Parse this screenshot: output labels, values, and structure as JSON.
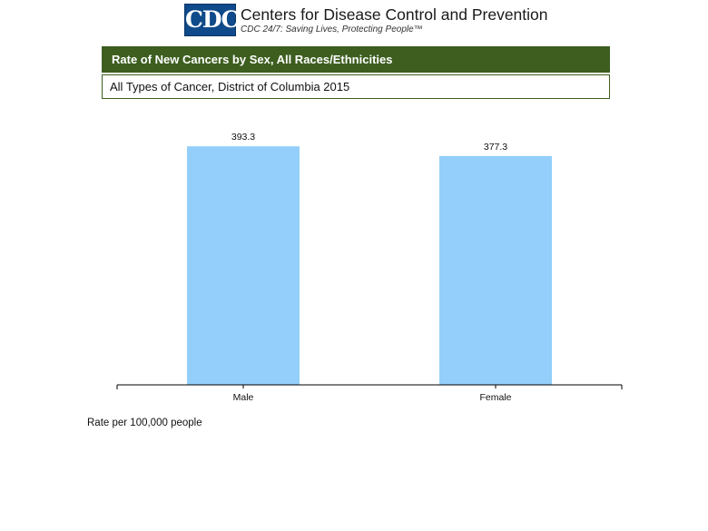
{
  "header": {
    "logo_text": "CDC",
    "org_name": "Centers for Disease Control and Prevention",
    "tagline": "CDC 24/7: Saving Lives, Protecting People™"
  },
  "colors": {
    "brand_blue": "#0f4a8a",
    "title_bar": "#3d5e1f",
    "bar_fill": "#93cffa"
  },
  "chart_data": {
    "type": "bar",
    "title": "Rate of New Cancers by Sex, All Races/Ethnicities",
    "subtitle": "All Types of Cancer, District of Columbia 2015",
    "categories": [
      "Male",
      "Female"
    ],
    "values": [
      393.3,
      377.3
    ],
    "value_labels": [
      "393.3",
      "377.3"
    ],
    "xlabel": "",
    "ylabel": "",
    "ylim": [
      0,
      440
    ],
    "grid": false,
    "legend": "none"
  },
  "footnote": "Rate per 100,000 people"
}
